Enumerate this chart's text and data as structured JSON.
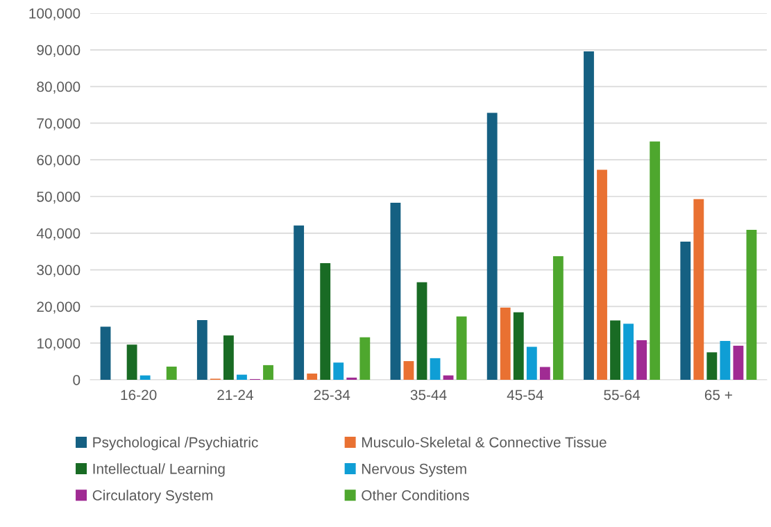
{
  "chart_data": {
    "type": "bar",
    "categories": [
      "16-20",
      "21-24",
      "25-34",
      "35-44",
      "45-54",
      "55-64",
      "65 +"
    ],
    "series": [
      {
        "name": "Psychological /Psychiatric",
        "color": "#156082",
        "values": [
          14500,
          16300,
          42100,
          48300,
          72800,
          89600,
          37700
        ]
      },
      {
        "name": "Musculo-Skeletal & Connective Tissue",
        "color": "#e97132",
        "values": [
          0,
          300,
          1700,
          5100,
          19700,
          57300,
          49300
        ]
      },
      {
        "name": "Intellectual/ Learning",
        "color": "#196b24",
        "values": [
          9600,
          12100,
          31800,
          26600,
          18400,
          16200,
          7500
        ]
      },
      {
        "name": "Nervous System",
        "color": "#0f9ed5",
        "values": [
          1200,
          1400,
          4700,
          5900,
          9000,
          15300,
          10600
        ]
      },
      {
        "name": "Circulatory System",
        "color": "#a02b93",
        "values": [
          0,
          200,
          600,
          1200,
          3500,
          10800,
          9300
        ]
      },
      {
        "name": "Other Conditions",
        "color": "#4ea72e",
        "values": [
          3600,
          4000,
          11600,
          17300,
          33700,
          65000,
          40900
        ]
      }
    ],
    "ylim": [
      0,
      100000
    ],
    "yticks": [
      {
        "value": 0,
        "label": "0"
      },
      {
        "value": 10000,
        "label": "10,000"
      },
      {
        "value": 20000,
        "label": "20,000"
      },
      {
        "value": 30000,
        "label": "30,000"
      },
      {
        "value": 40000,
        "label": "40,000"
      },
      {
        "value": 50000,
        "label": "50,000"
      },
      {
        "value": 60000,
        "label": "60,000"
      },
      {
        "value": 70000,
        "label": "70,000"
      },
      {
        "value": 80000,
        "label": "80,000"
      },
      {
        "value": 90000,
        "label": "90,000"
      },
      {
        "value": 100000,
        "label": "100,000"
      }
    ],
    "grid": "y",
    "legend": "bottom"
  }
}
